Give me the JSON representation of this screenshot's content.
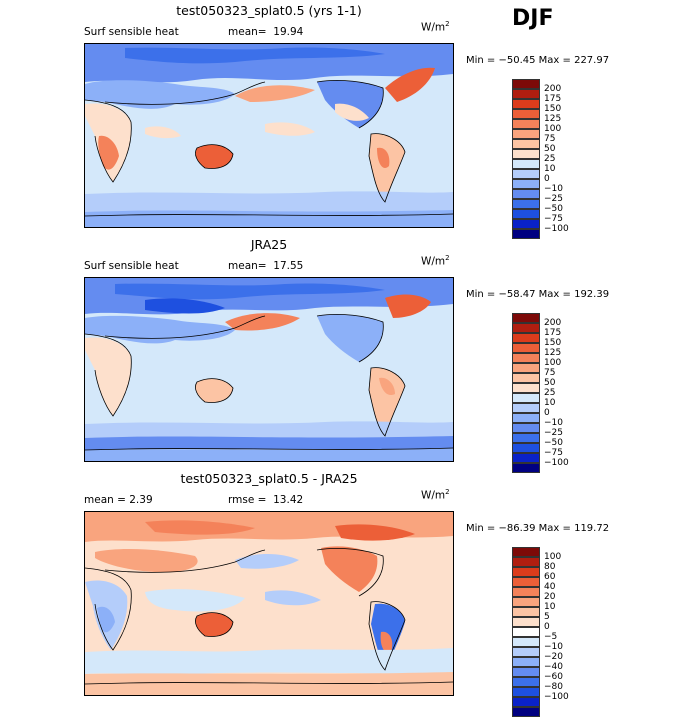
{
  "season": "DJF",
  "units_base": "W/m",
  "units_exp": "2",
  "colors": {
    "ocean_main": "#d4e8fa",
    "scale_full": [
      "#000080",
      "#0a22c8",
      "#1e50e0",
      "#3c70ea",
      "#648cf0",
      "#8cb0f8",
      "#b4cdfa",
      "#d4e8fa",
      "#fde0cc",
      "#fcc4a4",
      "#f9a47e",
      "#f4825a",
      "#ec5f38",
      "#db3c1c",
      "#b01e10",
      "#7d0a08"
    ],
    "scale_diff": [
      "#000080",
      "#0a22c8",
      "#1e50e0",
      "#3c70ea",
      "#648cf0",
      "#8cb0f8",
      "#b4cdfa",
      "#d4e8fa",
      "#ffffff",
      "#fde0cc",
      "#fcc4a4",
      "#f9a47e",
      "#f4825a",
      "#ec5f38",
      "#db3c1c",
      "#b01e10",
      "#7d0a08"
    ]
  },
  "panels": [
    {
      "title": "test050323_splat0.5 (yrs 1-1)",
      "left_label": "Surf sensible heat",
      "stat_label": "mean=",
      "stat_value": "19.94",
      "min_max": "Min = −50.45 Max = 227.97",
      "levels": [
        "200",
        "175",
        "150",
        "125",
        "100",
        "75",
        "50",
        "25",
        "10",
        "0",
        "−10",
        "−25",
        "−50",
        "−75",
        "−100"
      ]
    },
    {
      "title": "JRA25",
      "left_label": "Surf sensible heat",
      "stat_label": "mean=",
      "stat_value": "17.55",
      "min_max": "Min = −58.47 Max = 192.39",
      "levels": [
        "200",
        "175",
        "150",
        "125",
        "100",
        "75",
        "50",
        "25",
        "10",
        "0",
        "−10",
        "−25",
        "−50",
        "−75",
        "−100"
      ]
    },
    {
      "title": "test050323_splat0.5 - JRA25",
      "left_label": "mean =   2.39",
      "stat_label": "rmse =",
      "stat_value": "13.42",
      "min_max": "Min = −86.39 Max = 119.72",
      "levels": [
        "100",
        "80",
        "60",
        "40",
        "20",
        "10",
        "5",
        "0",
        "−5",
        "−10",
        "−20",
        "−40",
        "−60",
        "−80",
        "−100"
      ]
    }
  ],
  "chart_data": [
    {
      "type": "heatmap",
      "title": "test050323_splat0.5 (yrs 1-1)",
      "variable": "Surf sensible heat",
      "units": "W/m2",
      "mean": 19.94,
      "min": -50.45,
      "max": 227.97,
      "contour_levels": [
        200,
        175,
        150,
        125,
        100,
        75,
        50,
        25,
        10,
        0,
        -10,
        -25,
        -50,
        -75,
        -100
      ]
    },
    {
      "type": "heatmap",
      "title": "JRA25",
      "variable": "Surf sensible heat",
      "units": "W/m2",
      "mean": 17.55,
      "min": -58.47,
      "max": 192.39,
      "contour_levels": [
        200,
        175,
        150,
        125,
        100,
        75,
        50,
        25,
        10,
        0,
        -10,
        -25,
        -50,
        -75,
        -100
      ]
    },
    {
      "type": "heatmap",
      "title": "test050323_splat0.5 - JRA25",
      "units": "W/m2",
      "mean": 2.39,
      "rmse": 13.42,
      "min": -86.39,
      "max": 119.72,
      "contour_levels": [
        100,
        80,
        60,
        40,
        20,
        10,
        5,
        0,
        -5,
        -10,
        -20,
        -40,
        -60,
        -80,
        -100
      ]
    }
  ]
}
